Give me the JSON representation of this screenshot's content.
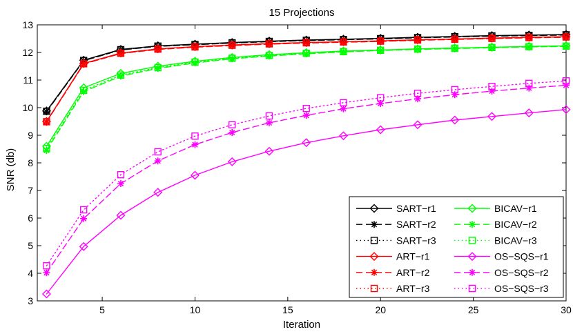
{
  "chart_data": {
    "type": "line",
    "title": "15 Projections",
    "xlabel": "Iteration",
    "ylabel": "SNR (db)",
    "xlim": [
      1.5,
      30
    ],
    "ylim": [
      3,
      13
    ],
    "x_ticks": [
      5,
      10,
      15,
      20,
      25,
      30
    ],
    "y_ticks": [
      3,
      4,
      5,
      6,
      7,
      8,
      9,
      10,
      11,
      12,
      13
    ],
    "grid": false,
    "legend_position": "bottom-right",
    "x": [
      2,
      4,
      6,
      8,
      10,
      12,
      14,
      16,
      18,
      20,
      22,
      24,
      26,
      28,
      30
    ],
    "series": [
      {
        "name": "SART−r1",
        "color": "#000000",
        "dash": "solid",
        "marker": "diamond",
        "values": [
          9.88,
          11.72,
          12.11,
          12.24,
          12.3,
          12.36,
          12.41,
          12.45,
          12.48,
          12.51,
          12.55,
          12.58,
          12.61,
          12.63,
          12.65
        ]
      },
      {
        "name": "SART−r2",
        "color": "#000000",
        "dash": "dashed",
        "marker": "star",
        "values": [
          9.85,
          11.7,
          12.09,
          12.22,
          12.28,
          12.34,
          12.39,
          12.43,
          12.46,
          12.49,
          12.53,
          12.56,
          12.59,
          12.61,
          12.63
        ]
      },
      {
        "name": "SART−r3",
        "color": "#000000",
        "dash": "dotted",
        "marker": "square",
        "values": [
          9.87,
          11.71,
          12.1,
          12.23,
          12.29,
          12.35,
          12.4,
          12.44,
          12.47,
          12.5,
          12.54,
          12.57,
          12.6,
          12.62,
          12.64
        ]
      },
      {
        "name": "ART−r1",
        "color": "#ff0000",
        "dash": "solid",
        "marker": "diamond",
        "values": [
          9.5,
          11.6,
          11.98,
          12.13,
          12.21,
          12.27,
          12.32,
          12.36,
          12.39,
          12.42,
          12.46,
          12.49,
          12.52,
          12.55,
          12.57
        ]
      },
      {
        "name": "ART−r2",
        "color": "#ff0000",
        "dash": "dashed",
        "marker": "star",
        "values": [
          9.48,
          11.58,
          11.96,
          12.11,
          12.19,
          12.25,
          12.3,
          12.34,
          12.37,
          12.4,
          12.44,
          12.47,
          12.5,
          12.53,
          12.55
        ]
      },
      {
        "name": "ART−r3",
        "color": "#ff0000",
        "dash": "dotted",
        "marker": "square",
        "values": [
          9.49,
          11.59,
          11.97,
          12.12,
          12.2,
          12.26,
          12.31,
          12.35,
          12.38,
          12.41,
          12.45,
          12.48,
          12.51,
          12.54,
          12.56
        ]
      },
      {
        "name": "BICAV−r1",
        "color": "#00ff00",
        "dash": "solid",
        "marker": "diamond",
        "values": [
          8.6,
          10.72,
          11.24,
          11.5,
          11.68,
          11.82,
          11.92,
          11.99,
          12.05,
          12.09,
          12.13,
          12.16,
          12.19,
          12.22,
          12.24
        ]
      },
      {
        "name": "BICAV−r2",
        "color": "#00ff00",
        "dash": "dashed",
        "marker": "star",
        "values": [
          8.45,
          10.58,
          11.14,
          11.42,
          11.62,
          11.77,
          11.87,
          11.95,
          12.02,
          12.07,
          12.11,
          12.14,
          12.17,
          12.2,
          12.22
        ]
      },
      {
        "name": "BICAV−r3",
        "color": "#00ff00",
        "dash": "dotted",
        "marker": "square",
        "values": [
          8.52,
          10.63,
          11.18,
          11.45,
          11.65,
          11.79,
          11.89,
          11.97,
          12.03,
          12.08,
          12.12,
          12.15,
          12.18,
          12.21,
          12.23
        ]
      },
      {
        "name": "OS−SQS−r1",
        "color": "#ff00ff",
        "dash": "solid",
        "marker": "diamond",
        "values": [
          3.25,
          4.97,
          6.1,
          6.93,
          7.55,
          8.04,
          8.42,
          8.73,
          8.98,
          9.2,
          9.38,
          9.55,
          9.68,
          9.81,
          9.93
        ]
      },
      {
        "name": "OS−SQS−r2",
        "color": "#ff00ff",
        "dash": "dashed",
        "marker": "star",
        "values": [
          4.02,
          5.98,
          7.25,
          8.07,
          8.66,
          9.1,
          9.45,
          9.72,
          9.96,
          10.15,
          10.32,
          10.47,
          10.6,
          10.71,
          10.81
        ]
      },
      {
        "name": "OS−SQS−r3",
        "color": "#ff00ff",
        "dash": "dotted",
        "marker": "square",
        "values": [
          4.27,
          6.3,
          7.57,
          8.4,
          8.97,
          9.38,
          9.7,
          9.97,
          10.18,
          10.36,
          10.52,
          10.65,
          10.77,
          10.88,
          10.97
        ]
      }
    ]
  }
}
